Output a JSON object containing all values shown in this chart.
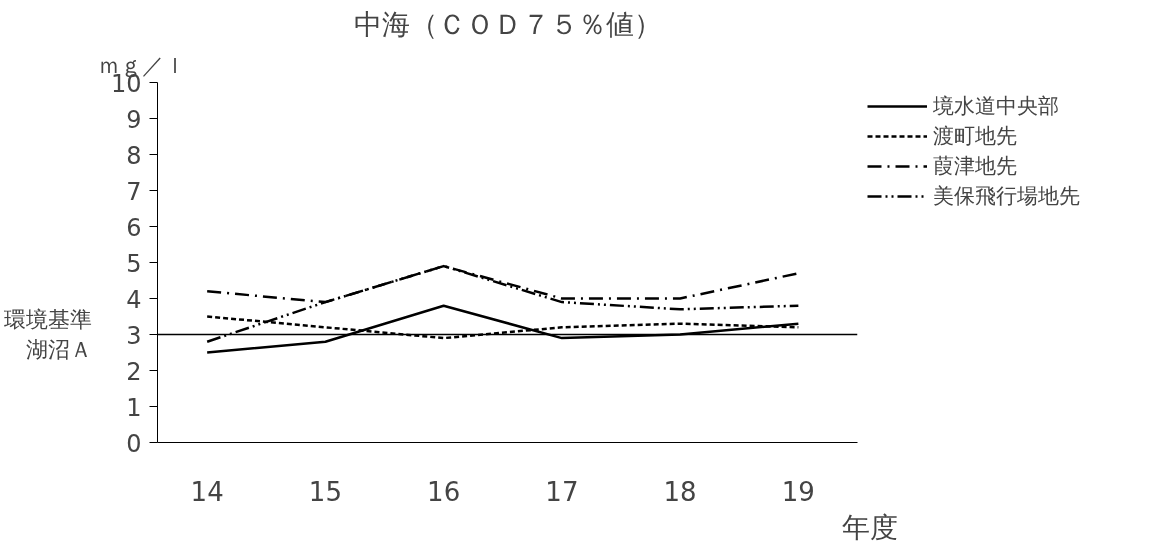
{
  "chart_data": {
    "type": "line",
    "title": "中海（ＣＯＤ７５％値）",
    "ylabel": "ｍｇ／ｌ",
    "xlabel": "年度",
    "categories": [
      "14",
      "15",
      "16",
      "17",
      "18",
      "19"
    ],
    "series": [
      {
        "name": "境水道中央部",
        "color": "#000000",
        "line_style": "solid",
        "values": [
          2.5,
          2.8,
          3.8,
          2.9,
          3.0,
          3.3
        ]
      },
      {
        "name": "渡町地先",
        "color": "#000000",
        "line_style": "dashed",
        "values": [
          3.5,
          3.2,
          2.9,
          3.2,
          3.3,
          3.2
        ]
      },
      {
        "name": "葭津地先",
        "color": "#000000",
        "line_style": "dashdot",
        "values": [
          4.2,
          3.9,
          4.9,
          4.0,
          4.0,
          4.7
        ]
      },
      {
        "name": "美保飛行場地先",
        "color": "#000000",
        "line_style": "dashdotdot",
        "values": [
          2.8,
          3.9,
          4.9,
          3.9,
          3.7,
          3.8
        ]
      }
    ],
    "ylim": [
      0,
      10
    ],
    "yticks": [
      0,
      1,
      2,
      3,
      4,
      5,
      6,
      7,
      8,
      9,
      10
    ],
    "ref_lines": [
      {
        "axis": "y",
        "value": 3,
        "label": "環境基準湖沼Ａ",
        "color": "#000000"
      }
    ],
    "grid": false,
    "legend": "top right",
    "marker": "none"
  }
}
